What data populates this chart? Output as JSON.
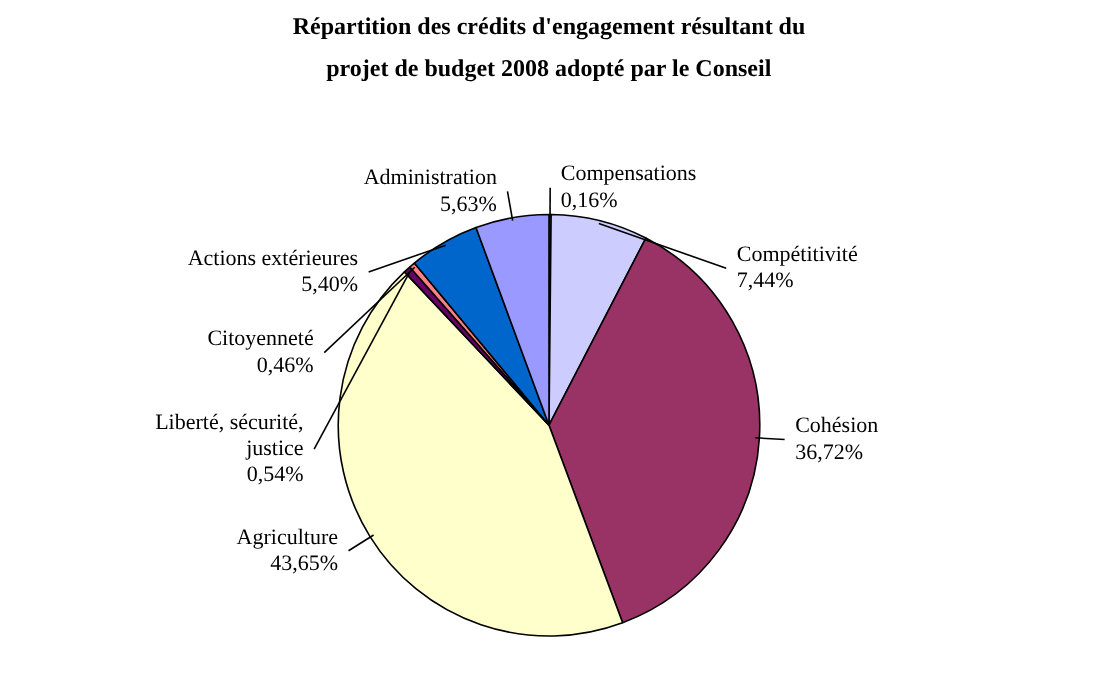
{
  "chart_data": {
    "type": "pie",
    "title": "Répartition des crédits d'engagement résultant du\nprojet de budget 2008 adopté par le Conseil",
    "categories": [
      "Compensations",
      "Compétitivité",
      "Cohésion",
      "Agriculture",
      "Liberté, sécurité,\njustice",
      "Citoyenneté",
      "Actions extérieures",
      "Administration"
    ],
    "values": [
      0.16,
      7.44,
      36.72,
      43.65,
      0.54,
      0.46,
      5.4,
      5.63
    ],
    "value_labels": [
      "0,16%",
      "7,44%",
      "36,72%",
      "43,65%",
      "0,54%",
      "0,46%",
      "5,40%",
      "5,63%"
    ],
    "colors": [
      "#ccffff",
      "#ccccff",
      "#993366",
      "#ffffcc",
      "#660066",
      "#ff8080",
      "#0066cc",
      "#9999ff"
    ]
  }
}
